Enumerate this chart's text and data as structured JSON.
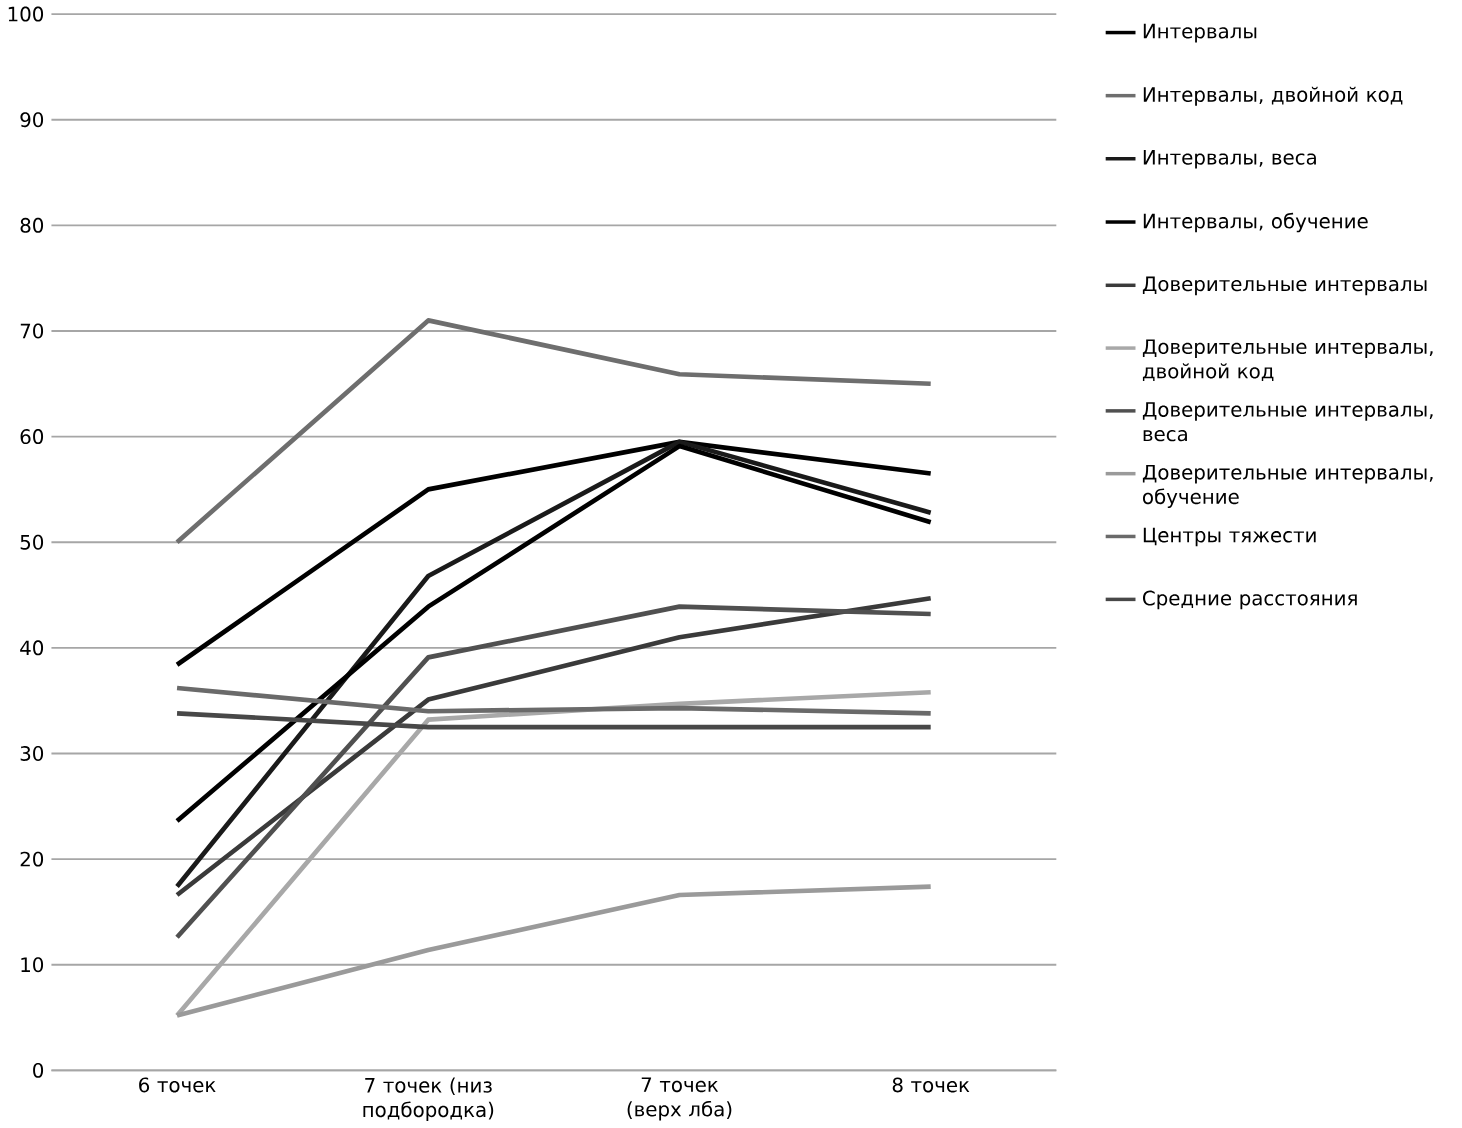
{
  "chart_data": {
    "type": "line",
    "categories": [
      "6 точек",
      "7 точек (низ подбородка)",
      "7 точек (верх лба)",
      "8 точек"
    ],
    "ylim": [
      0,
      100
    ],
    "yticks": [
      0,
      10,
      20,
      30,
      40,
      50,
      60,
      70,
      80,
      90,
      100
    ],
    "grid": "y",
    "legend": "right",
    "marker": "none",
    "line_style": "solid",
    "series": [
      {
        "name": "Интервалы",
        "color": "#000000",
        "values": [
          38.4,
          55.0,
          59.5,
          56.5
        ]
      },
      {
        "name": "Интервалы, двойной  код",
        "color": "#6e6e6e",
        "values": [
          50.0,
          71.0,
          65.9,
          65.0
        ]
      },
      {
        "name": "Интервалы, веса",
        "color": "#1a1a1a",
        "values": [
          17.4,
          46.8,
          59.5,
          52.8
        ]
      },
      {
        "name": "Интервалы, обучение",
        "color": "#000000",
        "values": [
          23.6,
          43.9,
          59.1,
          51.9
        ]
      },
      {
        "name": "Доверительные интервалы",
        "color": "#3a3a3a",
        "values": [
          16.6,
          35.1,
          41.0,
          44.7
        ]
      },
      {
        "name": "Доверительные интервалы, двойной код",
        "color": "#a8a8a8",
        "values": [
          5.2,
          33.2,
          34.7,
          35.8
        ]
      },
      {
        "name": "Доверительные интервалы, веса",
        "color": "#505050",
        "values": [
          12.6,
          39.1,
          43.9,
          43.2
        ]
      },
      {
        "name": "Доверительные интервалы, обучение",
        "color": "#9a9a9a",
        "values": [
          5.2,
          11.4,
          16.6,
          17.4
        ]
      },
      {
        "name": "Центры тяжести",
        "color": "#6a6a6a",
        "values": [
          36.2,
          34.0,
          34.3,
          33.8
        ]
      },
      {
        "name": "Средние расстояния",
        "color": "#484848",
        "values": [
          33.8,
          32.5,
          32.5,
          32.5
        ]
      }
    ]
  }
}
